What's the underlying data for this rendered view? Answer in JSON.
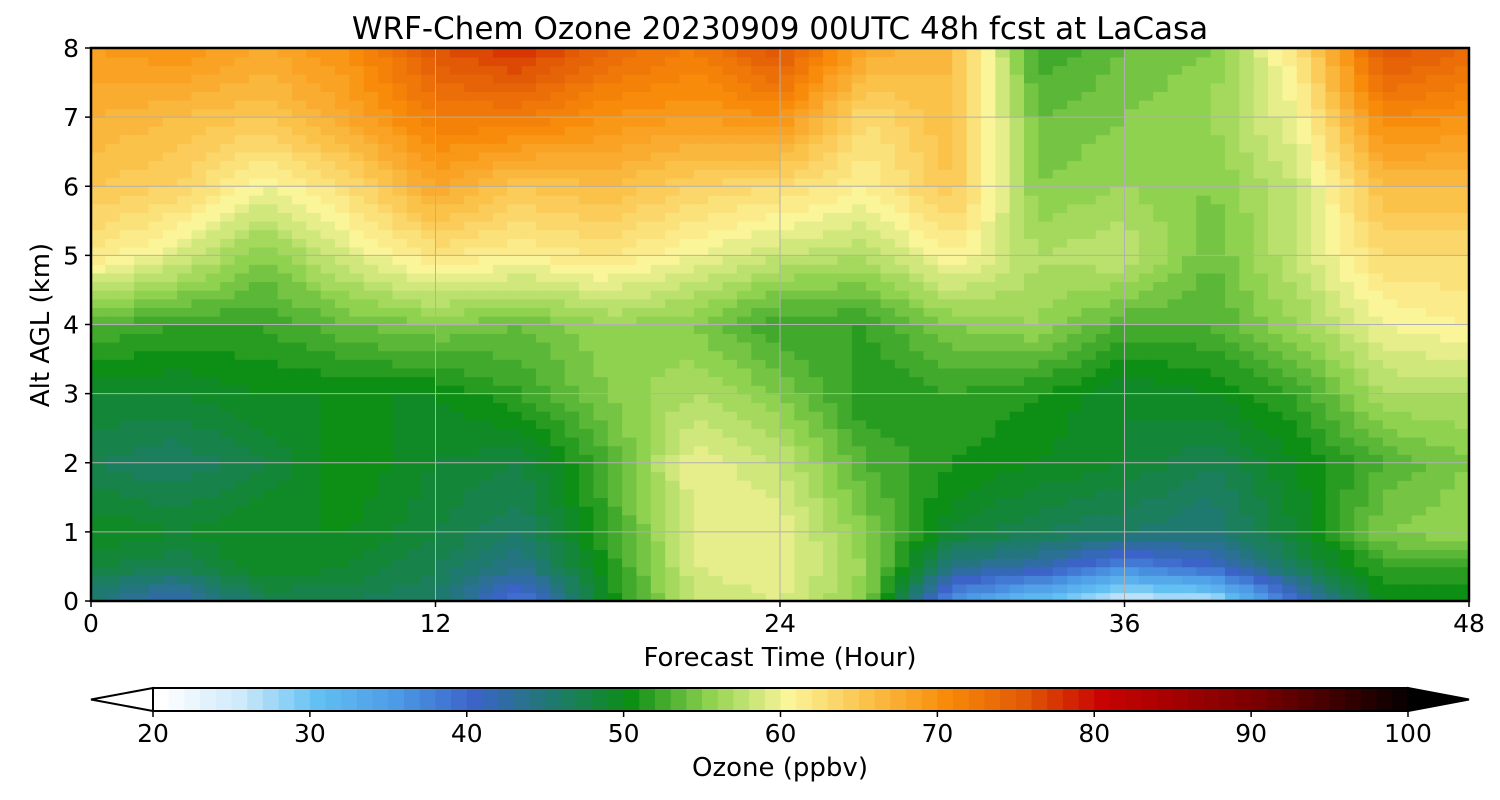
{
  "chart_data": {
    "type": "heatmap",
    "title": "WRF-Chem Ozone  20230909 00UTC 48h fcst at LaCasa",
    "xlabel": "Forecast Time (Hour)",
    "ylabel": "Alt AGL (km)",
    "xlim": [
      0,
      48
    ],
    "ylim": [
      0,
      8
    ],
    "x_ticks": [
      "0",
      "12",
      "24",
      "36",
      "48"
    ],
    "y_ticks": [
      "0",
      "1",
      "2",
      "3",
      "4",
      "5",
      "6",
      "7",
      "8"
    ],
    "grid": true,
    "x": [
      0,
      3,
      6,
      9,
      12,
      15,
      18,
      21,
      24,
      27,
      30,
      33,
      36,
      39,
      42,
      45,
      48
    ],
    "y": [
      0,
      0.5,
      1,
      2,
      3,
      4,
      5,
      6,
      7,
      8
    ],
    "z": [
      [
        45,
        41,
        47,
        47,
        46,
        38,
        50,
        58,
        59,
        55,
        36,
        30,
        25,
        26,
        40,
        50,
        50
      ],
      [
        48,
        47,
        50,
        49,
        47,
        44,
        51,
        59,
        60,
        56,
        44,
        42,
        37,
        40,
        47,
        52,
        52
      ],
      [
        50,
        49,
        50,
        50,
        48,
        46,
        52,
        59,
        60,
        55,
        49,
        47,
        46,
        45,
        49,
        55,
        56
      ],
      [
        47,
        46,
        48,
        51,
        49,
        48,
        53,
        60,
        58,
        53,
        51,
        50,
        49,
        47,
        50,
        53,
        55
      ],
      [
        49,
        49,
        50,
        50,
        50,
        52,
        55,
        57,
        55,
        51,
        52,
        51,
        49,
        50,
        52,
        57,
        57
      ],
      [
        53,
        52,
        52,
        54,
        55,
        54,
        56,
        55,
        52,
        52,
        55,
        56,
        53,
        53,
        56,
        60,
        61
      ],
      [
        62,
        59,
        55,
        59,
        62,
        61,
        62,
        60,
        58,
        57,
        61,
        57,
        58,
        54,
        58,
        63,
        63
      ],
      [
        65,
        64,
        60,
        63,
        68,
        65,
        66,
        64,
        63,
        61,
        65,
        55,
        56,
        55,
        58,
        66,
        66
      ],
      [
        67,
        66,
        65,
        68,
        72,
        72,
        70,
        69,
        70,
        63,
        66,
        54,
        55,
        56,
        60,
        71,
        70
      ],
      [
        69,
        70,
        68,
        70,
        76,
        78,
        74,
        72,
        76,
        68,
        66,
        52,
        54,
        55,
        62,
        76,
        74
      ]
    ],
    "colorbar": {
      "label": "Ozone  (ppbv)",
      "min": 20,
      "max": 100,
      "ticks": [
        "20",
        "30",
        "40",
        "50",
        "60",
        "70",
        "80",
        "90",
        "100"
      ],
      "extend": "both"
    },
    "colormap": [
      [
        20,
        "#ffffff"
      ],
      [
        25,
        "#cfeafb"
      ],
      [
        30,
        "#62c0f2"
      ],
      [
        35,
        "#4d9ae6"
      ],
      [
        40,
        "#3b63c8"
      ],
      [
        45,
        "#1e7a6e"
      ],
      [
        50,
        "#0d8e14"
      ],
      [
        55,
        "#8fd24f"
      ],
      [
        60,
        "#fbf59a"
      ],
      [
        65,
        "#fbc24a"
      ],
      [
        70,
        "#f88c0a"
      ],
      [
        75,
        "#e25a06"
      ],
      [
        80,
        "#c90202"
      ],
      [
        90,
        "#780000"
      ],
      [
        100,
        "#000000"
      ]
    ]
  }
}
